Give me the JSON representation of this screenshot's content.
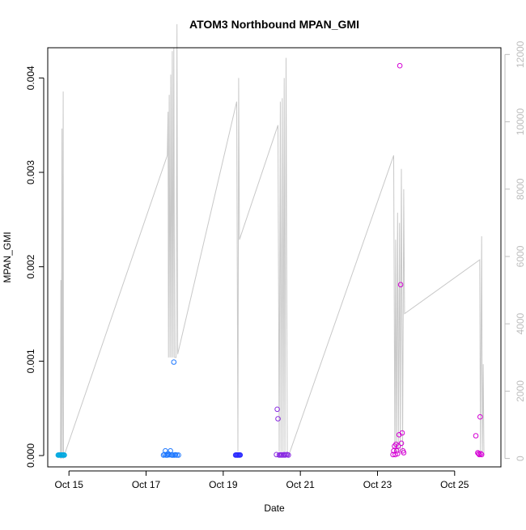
{
  "chart_data": {
    "type": "scatter",
    "title": "ATOM3 Northbound MPAN_GMI",
    "xlabel": "Date",
    "ylabel": "MPAN_GMI",
    "x_ticks": [
      "Oct 15",
      "Oct 17",
      "Oct 19",
      "Oct 21",
      "Oct 23",
      "Oct 25"
    ],
    "x_tick_days": [
      15,
      17,
      19,
      21,
      23,
      25
    ],
    "xlim": [
      14.45,
      26.2
    ],
    "y_ticks": [
      "0.000",
      "0.001",
      "0.002",
      "0.003",
      "0.004"
    ],
    "y_tick_values": [
      0,
      0.001,
      0.002,
      0.003,
      0.004
    ],
    "ylim": [
      -0.00012,
      0.00432
    ],
    "y2_ticks": [
      "0",
      "2000",
      "4000",
      "6000",
      "8000",
      "10000",
      "12000"
    ],
    "y2_tick_values": [
      0,
      2000,
      4000,
      6000,
      8000,
      10000,
      12000
    ],
    "y2lim": [
      -250,
      12200
    ],
    "altitude_color": "#c8c8c8",
    "altitude_line": [
      [
        14.78,
        0
      ],
      [
        14.79,
        5300
      ],
      [
        14.8,
        0
      ],
      [
        14.82,
        9800
      ],
      [
        14.83,
        0
      ],
      [
        14.85,
        10900
      ],
      [
        14.86,
        0
      ],
      [
        14.88,
        100
      ],
      [
        17.55,
        9000
      ],
      [
        17.57,
        10300
      ],
      [
        17.58,
        3000
      ],
      [
        17.6,
        10800
      ],
      [
        17.62,
        3000
      ],
      [
        17.64,
        11400
      ],
      [
        17.66,
        3000
      ],
      [
        17.68,
        12100
      ],
      [
        17.7,
        3000
      ],
      [
        17.72,
        12200
      ],
      [
        17.74,
        3000
      ],
      [
        17.78,
        3000
      ],
      [
        17.8,
        12900
      ],
      [
        17.82,
        3100
      ],
      [
        19.35,
        10600
      ],
      [
        19.38,
        200
      ],
      [
        19.4,
        11300
      ],
      [
        19.42,
        6500
      ],
      [
        20.42,
        9900
      ],
      [
        20.45,
        200
      ],
      [
        20.48,
        10600
      ],
      [
        20.5,
        200
      ],
      [
        20.53,
        10700
      ],
      [
        20.55,
        200
      ],
      [
        20.58,
        11300
      ],
      [
        20.6,
        200
      ],
      [
        20.63,
        11900
      ],
      [
        20.66,
        200
      ],
      [
        20.7,
        100
      ],
      [
        23.42,
        9000
      ],
      [
        23.45,
        200
      ],
      [
        23.47,
        6500
      ],
      [
        23.49,
        200
      ],
      [
        23.52,
        7300
      ],
      [
        23.54,
        200
      ],
      [
        23.57,
        7000
      ],
      [
        23.59,
        200
      ],
      [
        23.62,
        8600
      ],
      [
        23.65,
        200
      ],
      [
        23.68,
        8000
      ],
      [
        23.7,
        4300
      ],
      [
        25.65,
        5900
      ],
      [
        25.67,
        200
      ],
      [
        25.7,
        6600
      ],
      [
        25.72,
        200
      ],
      [
        25.74,
        2800
      ],
      [
        25.76,
        100
      ]
    ],
    "series": [
      {
        "color": "#00a8e0",
        "points": [
          [
            14.72,
            5e-06
          ],
          [
            14.74,
            5e-06
          ],
          [
            14.76,
            6e-06
          ],
          [
            14.78,
            5e-06
          ],
          [
            14.8,
            6e-06
          ],
          [
            14.82,
            5e-06
          ],
          [
            14.84,
            5e-06
          ],
          [
            14.86,
            6e-06
          ],
          [
            14.88,
            5e-06
          ]
        ]
      },
      {
        "color": "#1e78ff",
        "points": [
          [
            17.45,
            5e-06
          ],
          [
            17.48,
            1e-05
          ],
          [
            17.5,
            5e-05
          ],
          [
            17.52,
            5e-06
          ],
          [
            17.55,
            5e-06
          ],
          [
            17.57,
            2e-05
          ],
          [
            17.6,
            8e-06
          ],
          [
            17.63,
            5e-05
          ],
          [
            17.65,
            8e-06
          ],
          [
            17.67,
            5e-06
          ],
          [
            17.7,
            5e-06
          ],
          [
            17.72,
            0.00099
          ],
          [
            17.74,
            5e-06
          ],
          [
            17.76,
            8e-06
          ],
          [
            17.8,
            5e-06
          ],
          [
            17.84,
            5e-06
          ]
        ]
      },
      {
        "color": "#2a2aff",
        "points": [
          [
            19.32,
            5e-06
          ],
          [
            19.34,
            6e-06
          ],
          [
            19.36,
            5e-06
          ],
          [
            19.38,
            5e-06
          ],
          [
            19.4,
            6e-06
          ],
          [
            19.42,
            5e-06
          ],
          [
            19.44,
            6e-06
          ]
        ]
      },
      {
        "color": "#8a2be2",
        "points": [
          [
            20.38,
            1e-05
          ],
          [
            20.4,
            0.00049
          ],
          [
            20.42,
            0.00039
          ],
          [
            20.45,
            5e-06
          ],
          [
            20.48,
            8e-06
          ],
          [
            20.5,
            5e-06
          ],
          [
            20.52,
            8e-06
          ],
          [
            20.55,
            5e-06
          ],
          [
            20.58,
            1e-05
          ],
          [
            20.6,
            5e-06
          ],
          [
            20.63,
            8e-06
          ],
          [
            20.66,
            1e-05
          ],
          [
            20.69,
            5e-06
          ]
        ]
      },
      {
        "color": "#d400d4",
        "points": [
          [
            23.4,
            1e-05
          ],
          [
            23.42,
            5e-05
          ],
          [
            23.44,
            0.0001
          ],
          [
            23.46,
            1e-05
          ],
          [
            23.48,
            0.00012
          ],
          [
            23.5,
            5e-05
          ],
          [
            23.52,
            2e-05
          ],
          [
            23.54,
            0.0001
          ],
          [
            23.56,
            0.00022
          ],
          [
            23.58,
            0.00413
          ],
          [
            23.6,
            0.00181
          ],
          [
            23.62,
            0.00013
          ],
          [
            23.64,
            0.00024
          ],
          [
            23.66,
            5e-05
          ],
          [
            23.68,
            3e-05
          ],
          [
            25.55,
            0.00021
          ],
          [
            25.6,
            3e-05
          ],
          [
            25.62,
            2e-05
          ],
          [
            25.64,
            1e-05
          ],
          [
            25.66,
            0.00041
          ],
          [
            25.68,
            2e-05
          ],
          [
            25.7,
            1e-05
          ]
        ]
      }
    ]
  }
}
